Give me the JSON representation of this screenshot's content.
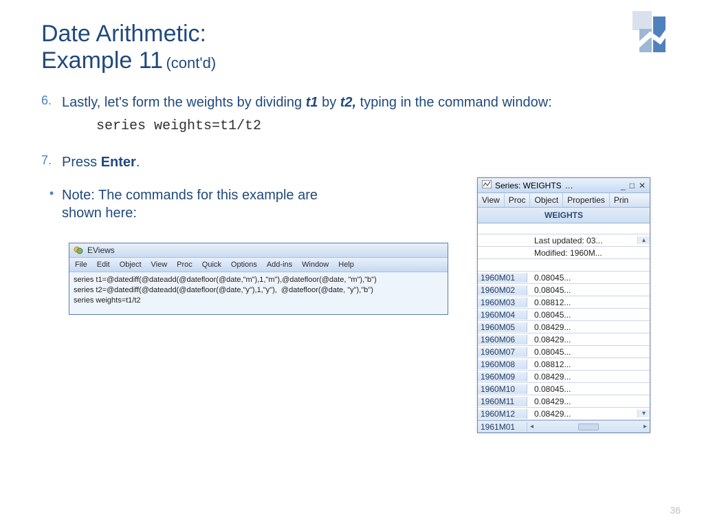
{
  "title": {
    "line1": "Date Arithmetic:",
    "line2": "Example 11",
    "sub": "(cont'd)"
  },
  "colors": {
    "heading": "#1f497d",
    "accent": "#4f81bd",
    "panel_border": "#6b88b3",
    "panel_bg_top": "#e9f1fb",
    "panel_bg_bot": "#c7dbf3"
  },
  "step6": {
    "num": "6.",
    "pre": "Lastly, let's form the weights by dividing ",
    "t1": "t1",
    "mid": " by ",
    "t2": "t2,",
    "post": " typing in the command window:"
  },
  "code": "series weights=t1/t2",
  "step7": {
    "num": "7.",
    "pre": "Press ",
    "enter": "Enter",
    "post": "."
  },
  "note": {
    "bullet": "•",
    "text": "Note: The commands for this example are shown here:"
  },
  "eviews": {
    "title": "EViews",
    "menu": [
      "File",
      "Edit",
      "Object",
      "View",
      "Proc",
      "Quick",
      "Options",
      "Add-ins",
      "Window",
      "Help"
    ],
    "cmds": "series t1=@datediff(@dateadd(@datefloor(@date,\"m\"),1,\"m\"),@datefloor(@date, \"m\"),\"b\")\nseries t2=@datediff(@dateadd(@datefloor(@date,\"y\"),1,\"y\"),  @datefloor(@date, \"y\"),\"b\")\nseries weights=t1/t2"
  },
  "series_panel": {
    "title": "Series: WEIGHTS",
    "ellipsis": "…",
    "toolbar": [
      "View",
      "Proc",
      "Object",
      "Properties",
      "Prin"
    ],
    "header": "WEIGHTS",
    "meta": [
      "Last updated: 03...",
      "Modified: 1960M..."
    ],
    "rows": [
      {
        "k": "1960M01",
        "v": "0.08045..."
      },
      {
        "k": "1960M02",
        "v": "0.08045..."
      },
      {
        "k": "1960M03",
        "v": "0.08812..."
      },
      {
        "k": "1960M04",
        "v": "0.08045..."
      },
      {
        "k": "1960M05",
        "v": "0.08429..."
      },
      {
        "k": "1960M06",
        "v": "0.08429..."
      },
      {
        "k": "1960M07",
        "v": "0.08045..."
      },
      {
        "k": "1960M08",
        "v": "0.08812..."
      },
      {
        "k": "1960M09",
        "v": "0.08429..."
      },
      {
        "k": "1960M10",
        "v": "0.08045..."
      },
      {
        "k": "1960M11",
        "v": "0.08429..."
      },
      {
        "k": "1960M12",
        "v": "0.08429..."
      }
    ],
    "footer_key": "1961M01"
  },
  "page_number": "36"
}
